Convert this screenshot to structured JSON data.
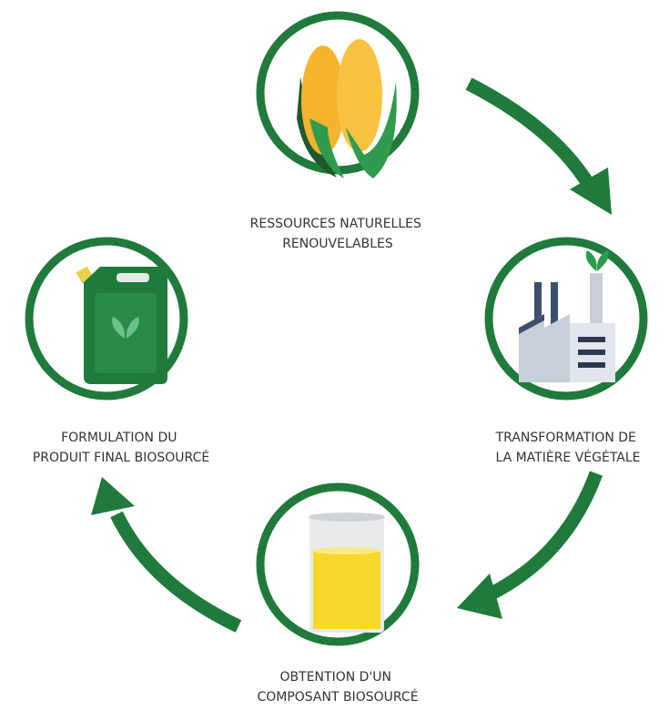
{
  "nodes": [
    {
      "lines": [
        "RESSOURCES NATURELLES",
        "RENOUVELABLES"
      ]
    },
    {
      "lines": [
        "TRANSFORMATION DE",
        "LA MATIÈRE VÉGÉTALE"
      ]
    },
    {
      "lines": [
        "OBTENTION D'UN",
        "COMPOSANT BIOSOURCÉ"
      ]
    },
    {
      "lines": [
        "FORMULATION DU",
        "PRODUIT FINAL BIOSOURCÉ"
      ]
    }
  ]
}
